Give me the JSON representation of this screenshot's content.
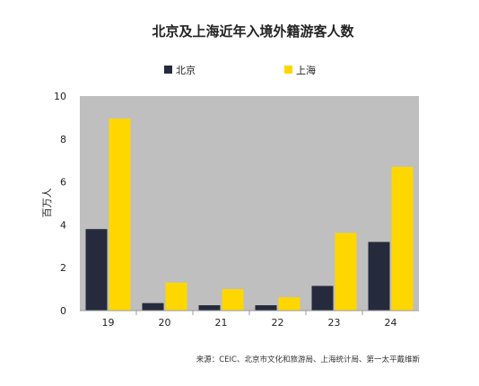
{
  "chart_data": {
    "type": "bar",
    "title": "北京及上海近年入境外籍游客人数",
    "ylabel": "百万人",
    "xlabel": "",
    "categories": [
      "19",
      "20",
      "21",
      "22",
      "23",
      "24"
    ],
    "series": [
      {
        "name": "北京",
        "color": "#262a3d",
        "values": [
          3.8,
          0.35,
          0.25,
          0.25,
          1.15,
          3.2
        ]
      },
      {
        "name": "上海",
        "color": "#ffd700",
        "values": [
          8.95,
          1.3,
          1.0,
          0.62,
          3.62,
          6.7
        ]
      }
    ],
    "ylim": [
      0,
      10
    ],
    "yticks": [
      "0",
      "2",
      "4",
      "6",
      "8",
      "10"
    ],
    "grid": false,
    "plot_background": "#bfbfbf",
    "legend_position": "top"
  },
  "source_text": "来源：CEIC、北京市文化和旅游局、上海统计局、第一太平戴维斯"
}
